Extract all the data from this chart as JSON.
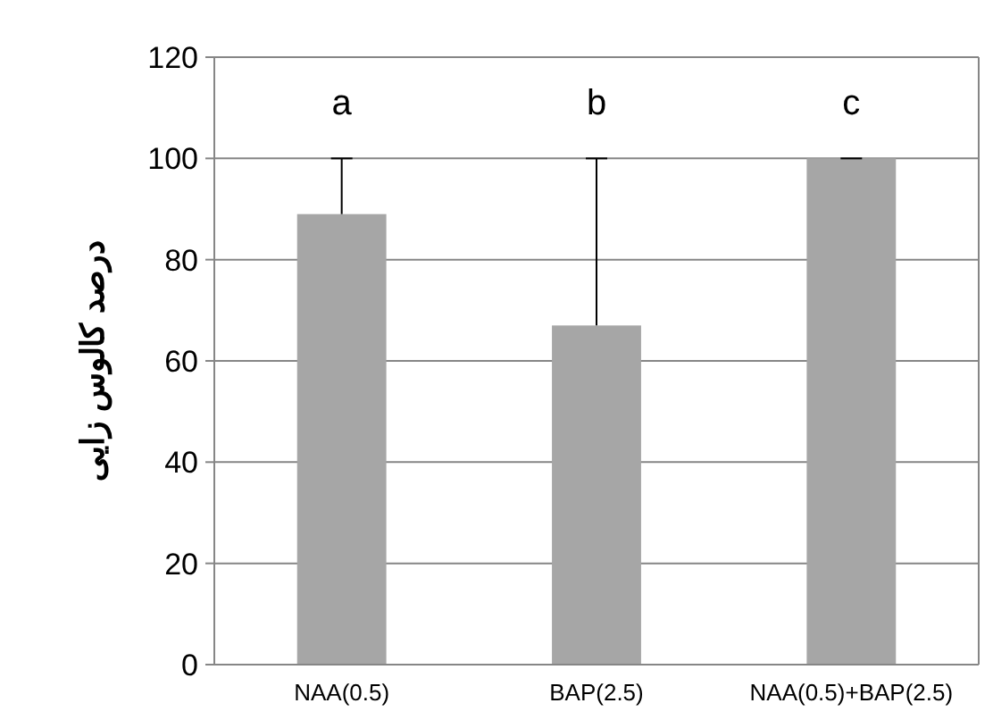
{
  "chart_data": {
    "type": "bar",
    "ylabel": "درصد کالوس زایی",
    "categories": [
      "NAA(0.5)",
      "BAP(2.5)",
      "NAA(0.5)+BAP(2.5)"
    ],
    "values": [
      89,
      67,
      100
    ],
    "errors": [
      [
        89,
        100
      ],
      [
        67,
        100
      ],
      [
        100,
        100
      ]
    ],
    "color": "#a6a6a6",
    "ylim": [
      0,
      120
    ],
    "yticks": [
      0,
      20,
      40,
      60,
      80,
      100,
      120
    ],
    "grid": "y",
    "annotations": [
      "a",
      "b",
      "c"
    ]
  }
}
